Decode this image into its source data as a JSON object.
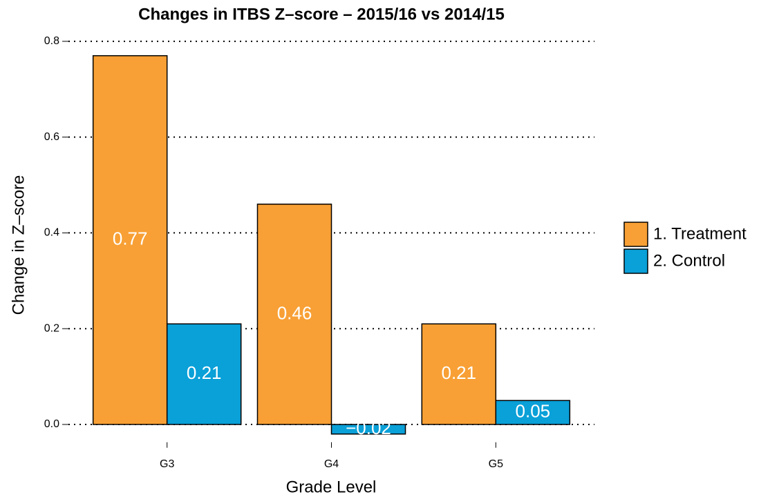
{
  "chart_data": {
    "type": "bar",
    "title": "Changes in ITBS Z–score – 2015/16 vs 2014/15",
    "x_label": "Grade Level",
    "y_label": "Change in Z–score",
    "categories": [
      "G3",
      "G4",
      "G5"
    ],
    "series": [
      {
        "name": "1. Treatment",
        "color": "#f8a035",
        "values": [
          0.77,
          0.46,
          0.21
        ]
      },
      {
        "name": "2. Control",
        "color": "#0aa0d8",
        "values": [
          0.21,
          -0.02,
          0.05
        ],
        "value_labels": [
          "0.21",
          "−0.02",
          "0.05"
        ]
      }
    ],
    "ylim": [
      -0.04,
      0.82
    ],
    "yticks": [
      {
        "value": 0,
        "label": "0.0"
      },
      0.2,
      0.4,
      0.6,
      0.8
    ],
    "grid": true,
    "legend": "right"
  }
}
